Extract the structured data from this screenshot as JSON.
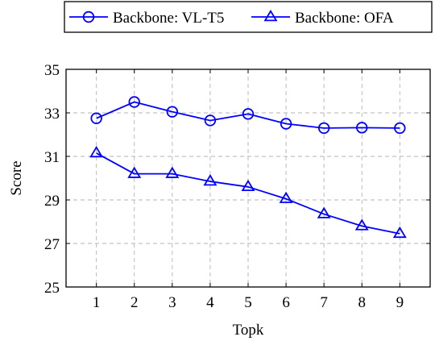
{
  "colors": {
    "series": "#0000ff",
    "grid": "#b3b3b3",
    "axis": "#000000"
  },
  "chart_data": {
    "type": "line",
    "title": "",
    "xlabel": "Topk",
    "ylabel": "Score",
    "x": [
      1,
      2,
      3,
      4,
      5,
      6,
      7,
      8,
      9
    ],
    "xlim": [
      0.2,
      9.8
    ],
    "ylim": [
      25,
      35
    ],
    "yticks": [
      25,
      27,
      29,
      31,
      33,
      35
    ],
    "grid": true,
    "grid_style": "dashed",
    "legend_position": "top-right, outside plot",
    "series": [
      {
        "name": "Backbone: VL-T5",
        "marker": "circle-open",
        "values": [
          32.75,
          33.5,
          33.05,
          32.65,
          32.95,
          32.5,
          32.3,
          32.32,
          32.3
        ]
      },
      {
        "name": "Backbone: OFA",
        "marker": "triangle-open",
        "values": [
          31.15,
          30.2,
          30.2,
          29.85,
          29.6,
          29.05,
          28.35,
          27.8,
          27.45
        ]
      }
    ]
  }
}
